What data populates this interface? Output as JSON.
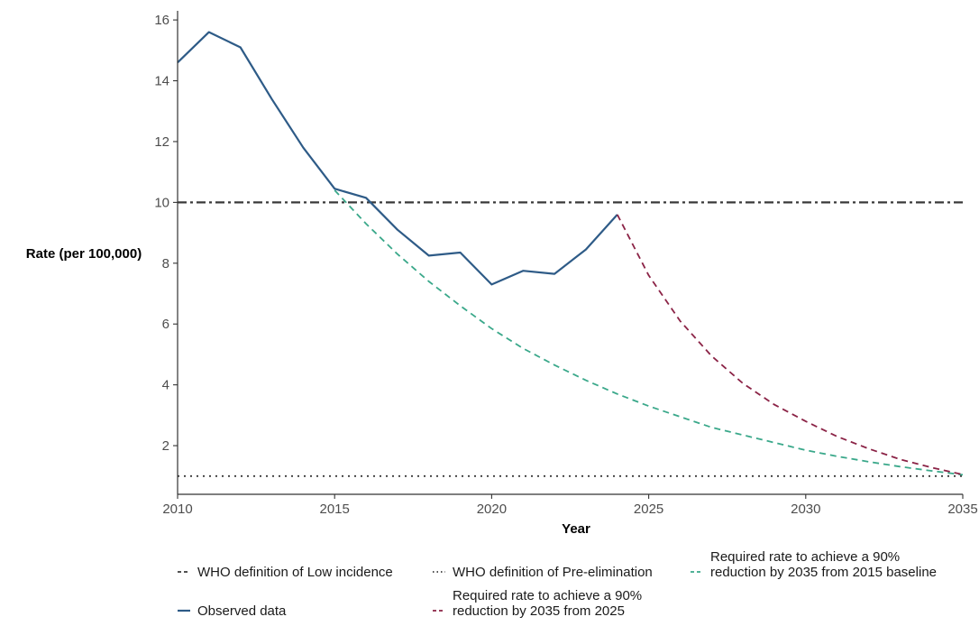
{
  "chart_data": {
    "type": "line",
    "title": "",
    "xlabel": "Year",
    "ylabel": "Rate (per 100,000)",
    "xlim": [
      2010,
      2035
    ],
    "ylim": [
      0.4,
      16.3
    ],
    "xticks": [
      2010,
      2015,
      2020,
      2025,
      2030,
      2035
    ],
    "yticks": [
      2,
      4,
      6,
      8,
      10,
      12,
      14,
      16
    ],
    "grid": false,
    "legend_position": "bottom",
    "series": [
      {
        "name": "WHO definition of Low incidence",
        "key": "low_incidence",
        "style": "dashdot",
        "color": "#3a3a3a",
        "x": [
          2010,
          2035
        ],
        "y": [
          10,
          10
        ]
      },
      {
        "name": "WHO definition of Pre-elimination",
        "key": "pre_elimination",
        "style": "dotted",
        "color": "#3a3a3a",
        "x": [
          2010,
          2035
        ],
        "y": [
          1,
          1
        ]
      },
      {
        "name": "Required rate to achieve a 90% reduction by 2035 from 2015 baseline",
        "legend_lines": [
          "Required rate to achieve a 90%",
          "reduction by 2035 from 2015 baseline"
        ],
        "key": "required_2015",
        "style": "dashed",
        "color": "#3aa88a",
        "x": [
          2015,
          2016,
          2017,
          2018,
          2019,
          2020,
          2021,
          2022,
          2023,
          2024,
          2025,
          2026,
          2027,
          2028,
          2029,
          2030,
          2031,
          2032,
          2033,
          2034,
          2035
        ],
        "y": [
          10.4,
          9.3,
          8.3,
          7.4,
          6.6,
          5.85,
          5.2,
          4.65,
          4.15,
          3.7,
          3.3,
          2.95,
          2.6,
          2.35,
          2.1,
          1.85,
          1.65,
          1.47,
          1.31,
          1.17,
          1.04
        ]
      },
      {
        "name": "Observed data",
        "key": "observed",
        "style": "solid",
        "color": "#2e5b87",
        "x": [
          2010,
          2011,
          2012,
          2013,
          2014,
          2015,
          2016,
          2017,
          2018,
          2019,
          2020,
          2021,
          2022,
          2023,
          2024
        ],
        "y": [
          14.6,
          15.6,
          15.1,
          13.4,
          11.8,
          10.45,
          10.15,
          9.1,
          8.25,
          8.35,
          7.3,
          7.75,
          7.65,
          8.45,
          9.6
        ]
      },
      {
        "name": "Required rate to achieve a 90% reduction by 2035 from 2025",
        "legend_lines": [
          "Required rate to achieve a 90%",
          "reduction by 2035 from 2025"
        ],
        "key": "required_2025",
        "style": "dashed",
        "color": "#8b2346",
        "x": [
          2024,
          2025,
          2026,
          2027,
          2028,
          2029,
          2030,
          2031,
          2032,
          2033,
          2034,
          2035
        ],
        "y": [
          9.6,
          7.6,
          6.1,
          4.95,
          4.05,
          3.35,
          2.8,
          2.3,
          1.9,
          1.55,
          1.28,
          1.05
        ]
      }
    ]
  }
}
